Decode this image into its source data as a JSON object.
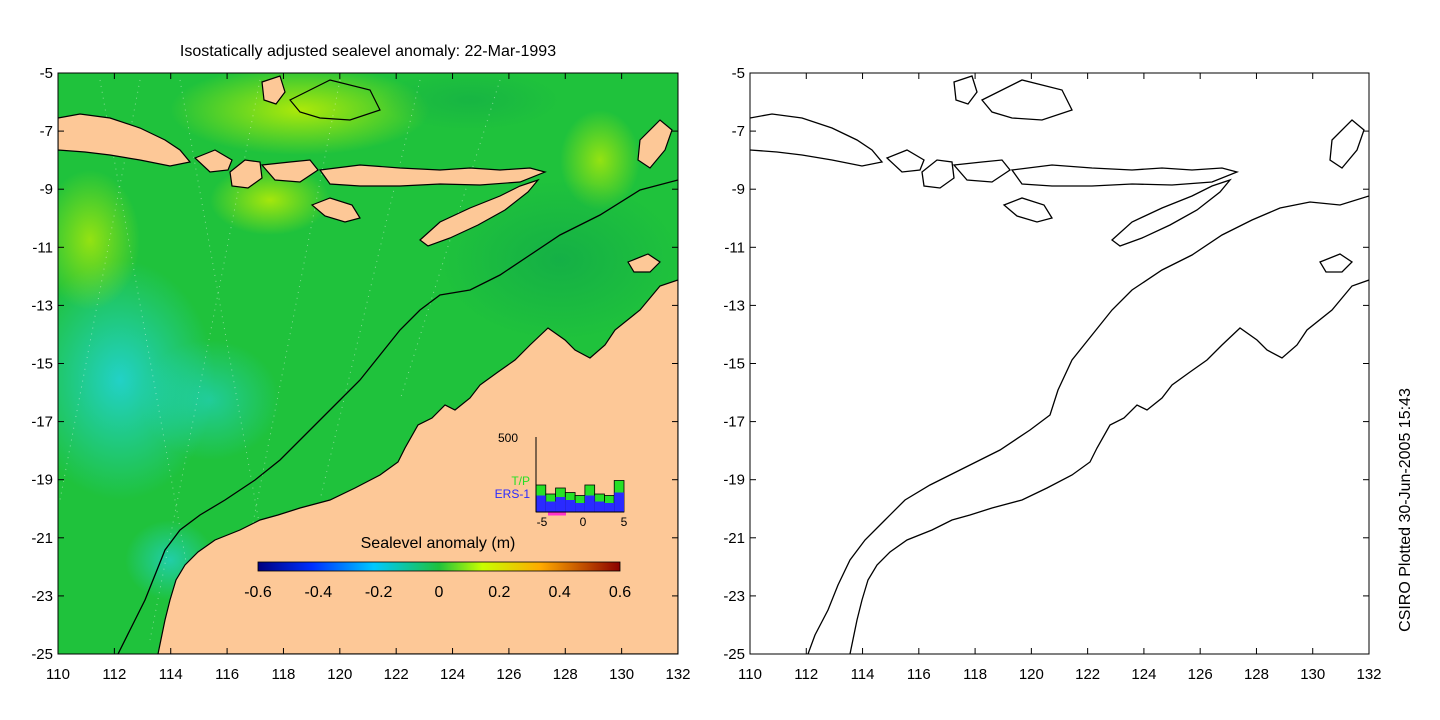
{
  "left_map": {
    "title": "Isostatically adjusted sealevel anomaly: 22-Mar-1993",
    "x_ticks": [
      "110",
      "112",
      "114",
      "116",
      "118",
      "120",
      "122",
      "124",
      "126",
      "128",
      "130",
      "132"
    ],
    "y_ticks": [
      "-5",
      "-7",
      "-9",
      "-11",
      "-13",
      "-15",
      "-17",
      "-19",
      "-21",
      "-23",
      "-25"
    ],
    "colors": {
      "sea_base": "#1fc23c",
      "land": "#fdc897",
      "coast": "#000000"
    }
  },
  "right_map": {
    "x_ticks": [
      "110",
      "112",
      "114",
      "116",
      "118",
      "120",
      "122",
      "124",
      "126",
      "128",
      "130",
      "132"
    ],
    "y_ticks": [
      "-5",
      "-7",
      "-9",
      "-11",
      "-13",
      "-15",
      "-17",
      "-19",
      "-21",
      "-23",
      "-25"
    ]
  },
  "colorbar": {
    "label": "Sealevel anomaly (m)",
    "ticks": [
      "-0.6",
      "-0.4",
      "-0.2",
      "0",
      "0.2",
      "0.4",
      "0.6"
    ],
    "colors": [
      "#00007f",
      "#0044ff",
      "#00c8ff",
      "#1fc23c",
      "#c8ff00",
      "#ffaa00",
      "#8b0000"
    ]
  },
  "inset": {
    "y_max_label": "500",
    "x_ticks": [
      "-5",
      "0",
      "5"
    ],
    "legend": [
      {
        "label": "T/P",
        "color": "#26e026"
      },
      {
        "label": "ERS-1",
        "color": "#2a2aff"
      }
    ],
    "tp_counts": [
      180,
      120,
      160,
      130,
      110,
      180,
      120,
      110,
      210
    ],
    "ers_counts": [
      110,
      70,
      100,
      80,
      60,
      110,
      70,
      60,
      130
    ],
    "y_max": 500
  },
  "credit": "CSIRO Plotted 30-Jun-2005 15:43"
}
